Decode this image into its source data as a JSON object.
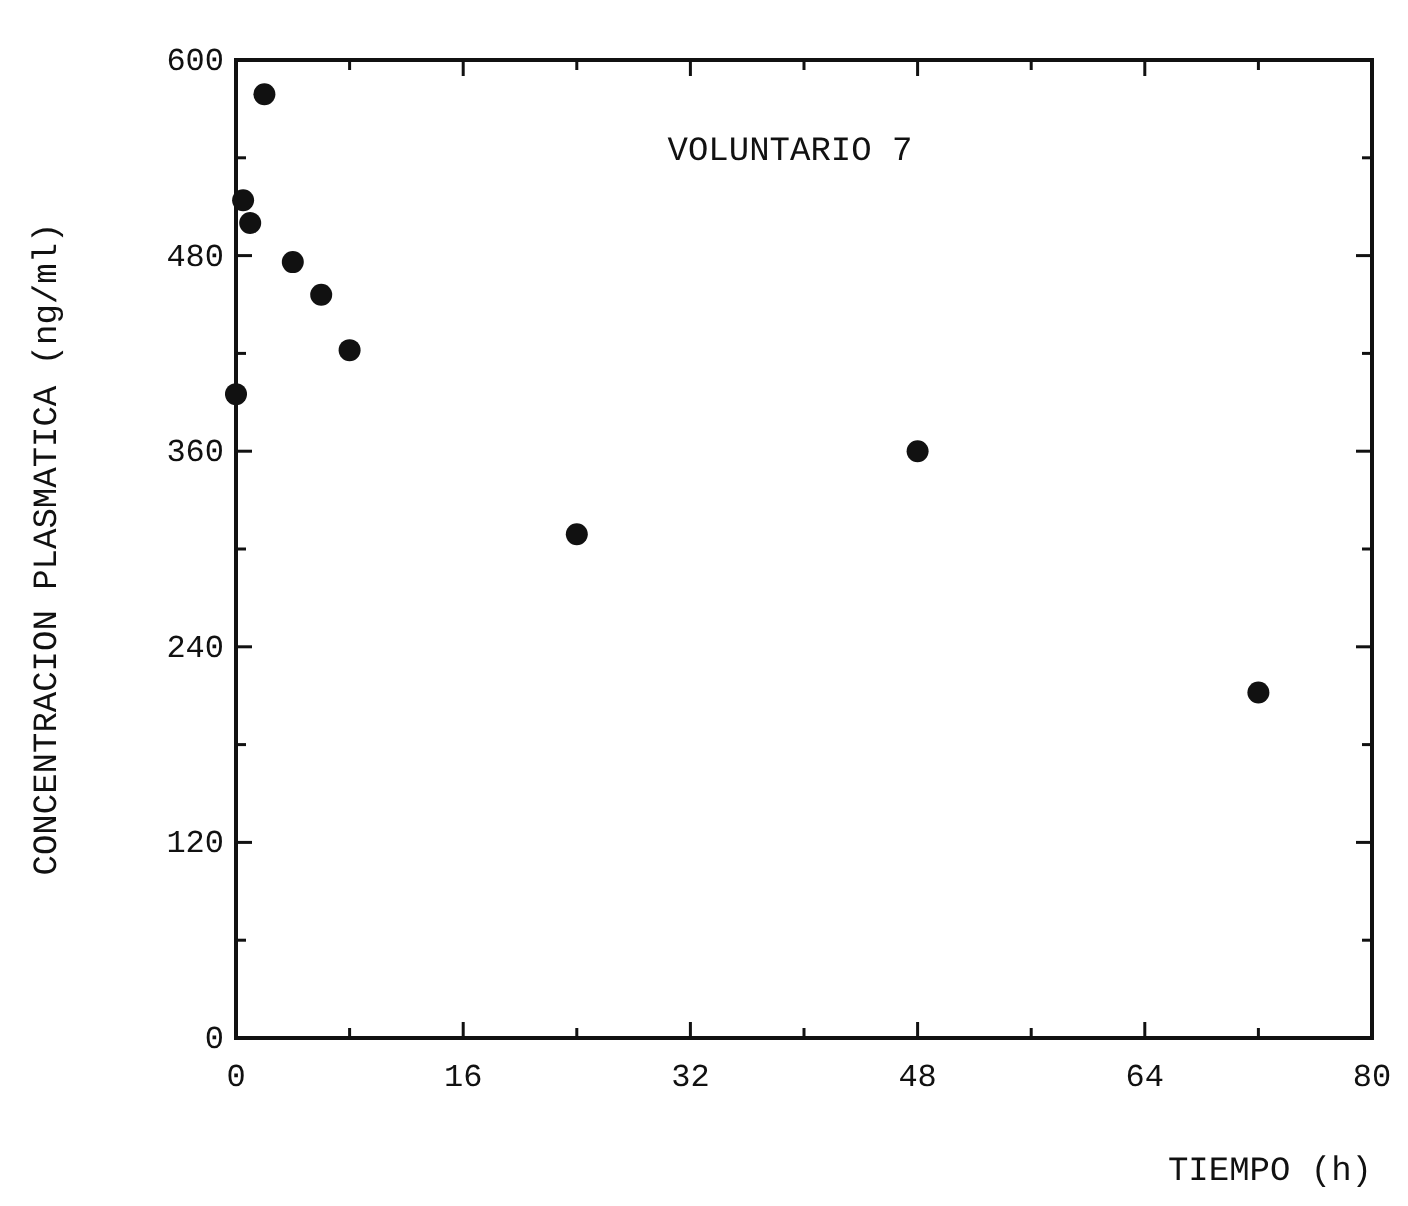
{
  "chart_data": {
    "type": "scatter",
    "title": "VOLUNTARIO 7",
    "xlabel": "TIEMPO (h)",
    "ylabel": "CONCENTRACION PLASMATICA (ng/ml)",
    "x": [
      0,
      0.5,
      1,
      2,
      4,
      6,
      8,
      24,
      48,
      72
    ],
    "values": [
      395,
      514,
      500,
      579,
      476,
      456,
      422,
      309,
      360,
      212
    ],
    "color": "#111111",
    "marker": "circle",
    "grid": false,
    "xlim": [
      0,
      80
    ],
    "ylim": [
      0,
      600
    ],
    "xticks": [
      0,
      {
        "value": 8,
        "label": null
      },
      16,
      {
        "value": 24,
        "label": null
      },
      32,
      {
        "value": 40,
        "label": null
      },
      48,
      {
        "value": 56,
        "label": null
      },
      64,
      {
        "value": 72,
        "label": null
      },
      80
    ],
    "yticks": [
      0,
      {
        "value": 60,
        "label": null
      },
      120,
      {
        "value": 180,
        "label": null
      },
      240,
      {
        "value": 300,
        "label": null
      },
      360,
      {
        "value": 420,
        "label": null
      },
      480,
      {
        "value": 540,
        "label": null
      },
      600
    ]
  }
}
